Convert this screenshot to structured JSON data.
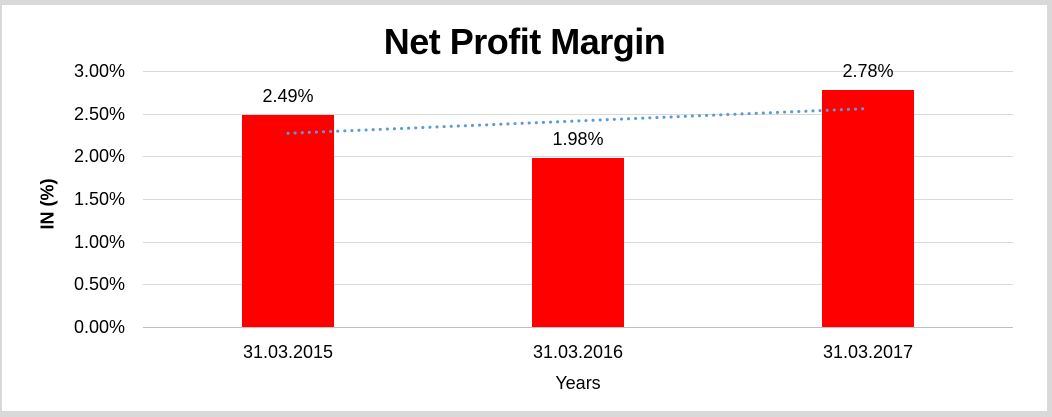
{
  "chart_data": {
    "type": "bar",
    "title": "Net Profit Margin",
    "categories": [
      "31.03.2015",
      "31.03.2016",
      "31.03.2017"
    ],
    "values": [
      2.49,
      1.98,
      2.78
    ],
    "data_labels": [
      "2.49%",
      "1.98%",
      "2.78%"
    ],
    "xlabel": "Years",
    "ylabel": "IN (%)",
    "ylim": [
      0,
      3
    ],
    "ytick_step": 0.5,
    "ytick_labels": [
      "0.00%",
      "0.50%",
      "1.00%",
      "1.50%",
      "2.00%",
      "2.50%",
      "3.00%"
    ],
    "grid": true,
    "legend_position": "none",
    "series_name": "Net Profit Margin",
    "trendline": {
      "kind": "linear",
      "style": "dotted",
      "start_value": 2.27,
      "end_value": 2.56
    },
    "colors": {
      "bar": "#ff0000",
      "trendline": "#5b9bd5",
      "gridline": "#d9d9d9",
      "axis_line": "#bfbfbf",
      "text": "#000000",
      "frame": "#d9d9d9",
      "plot_background": "#ffffff"
    }
  }
}
